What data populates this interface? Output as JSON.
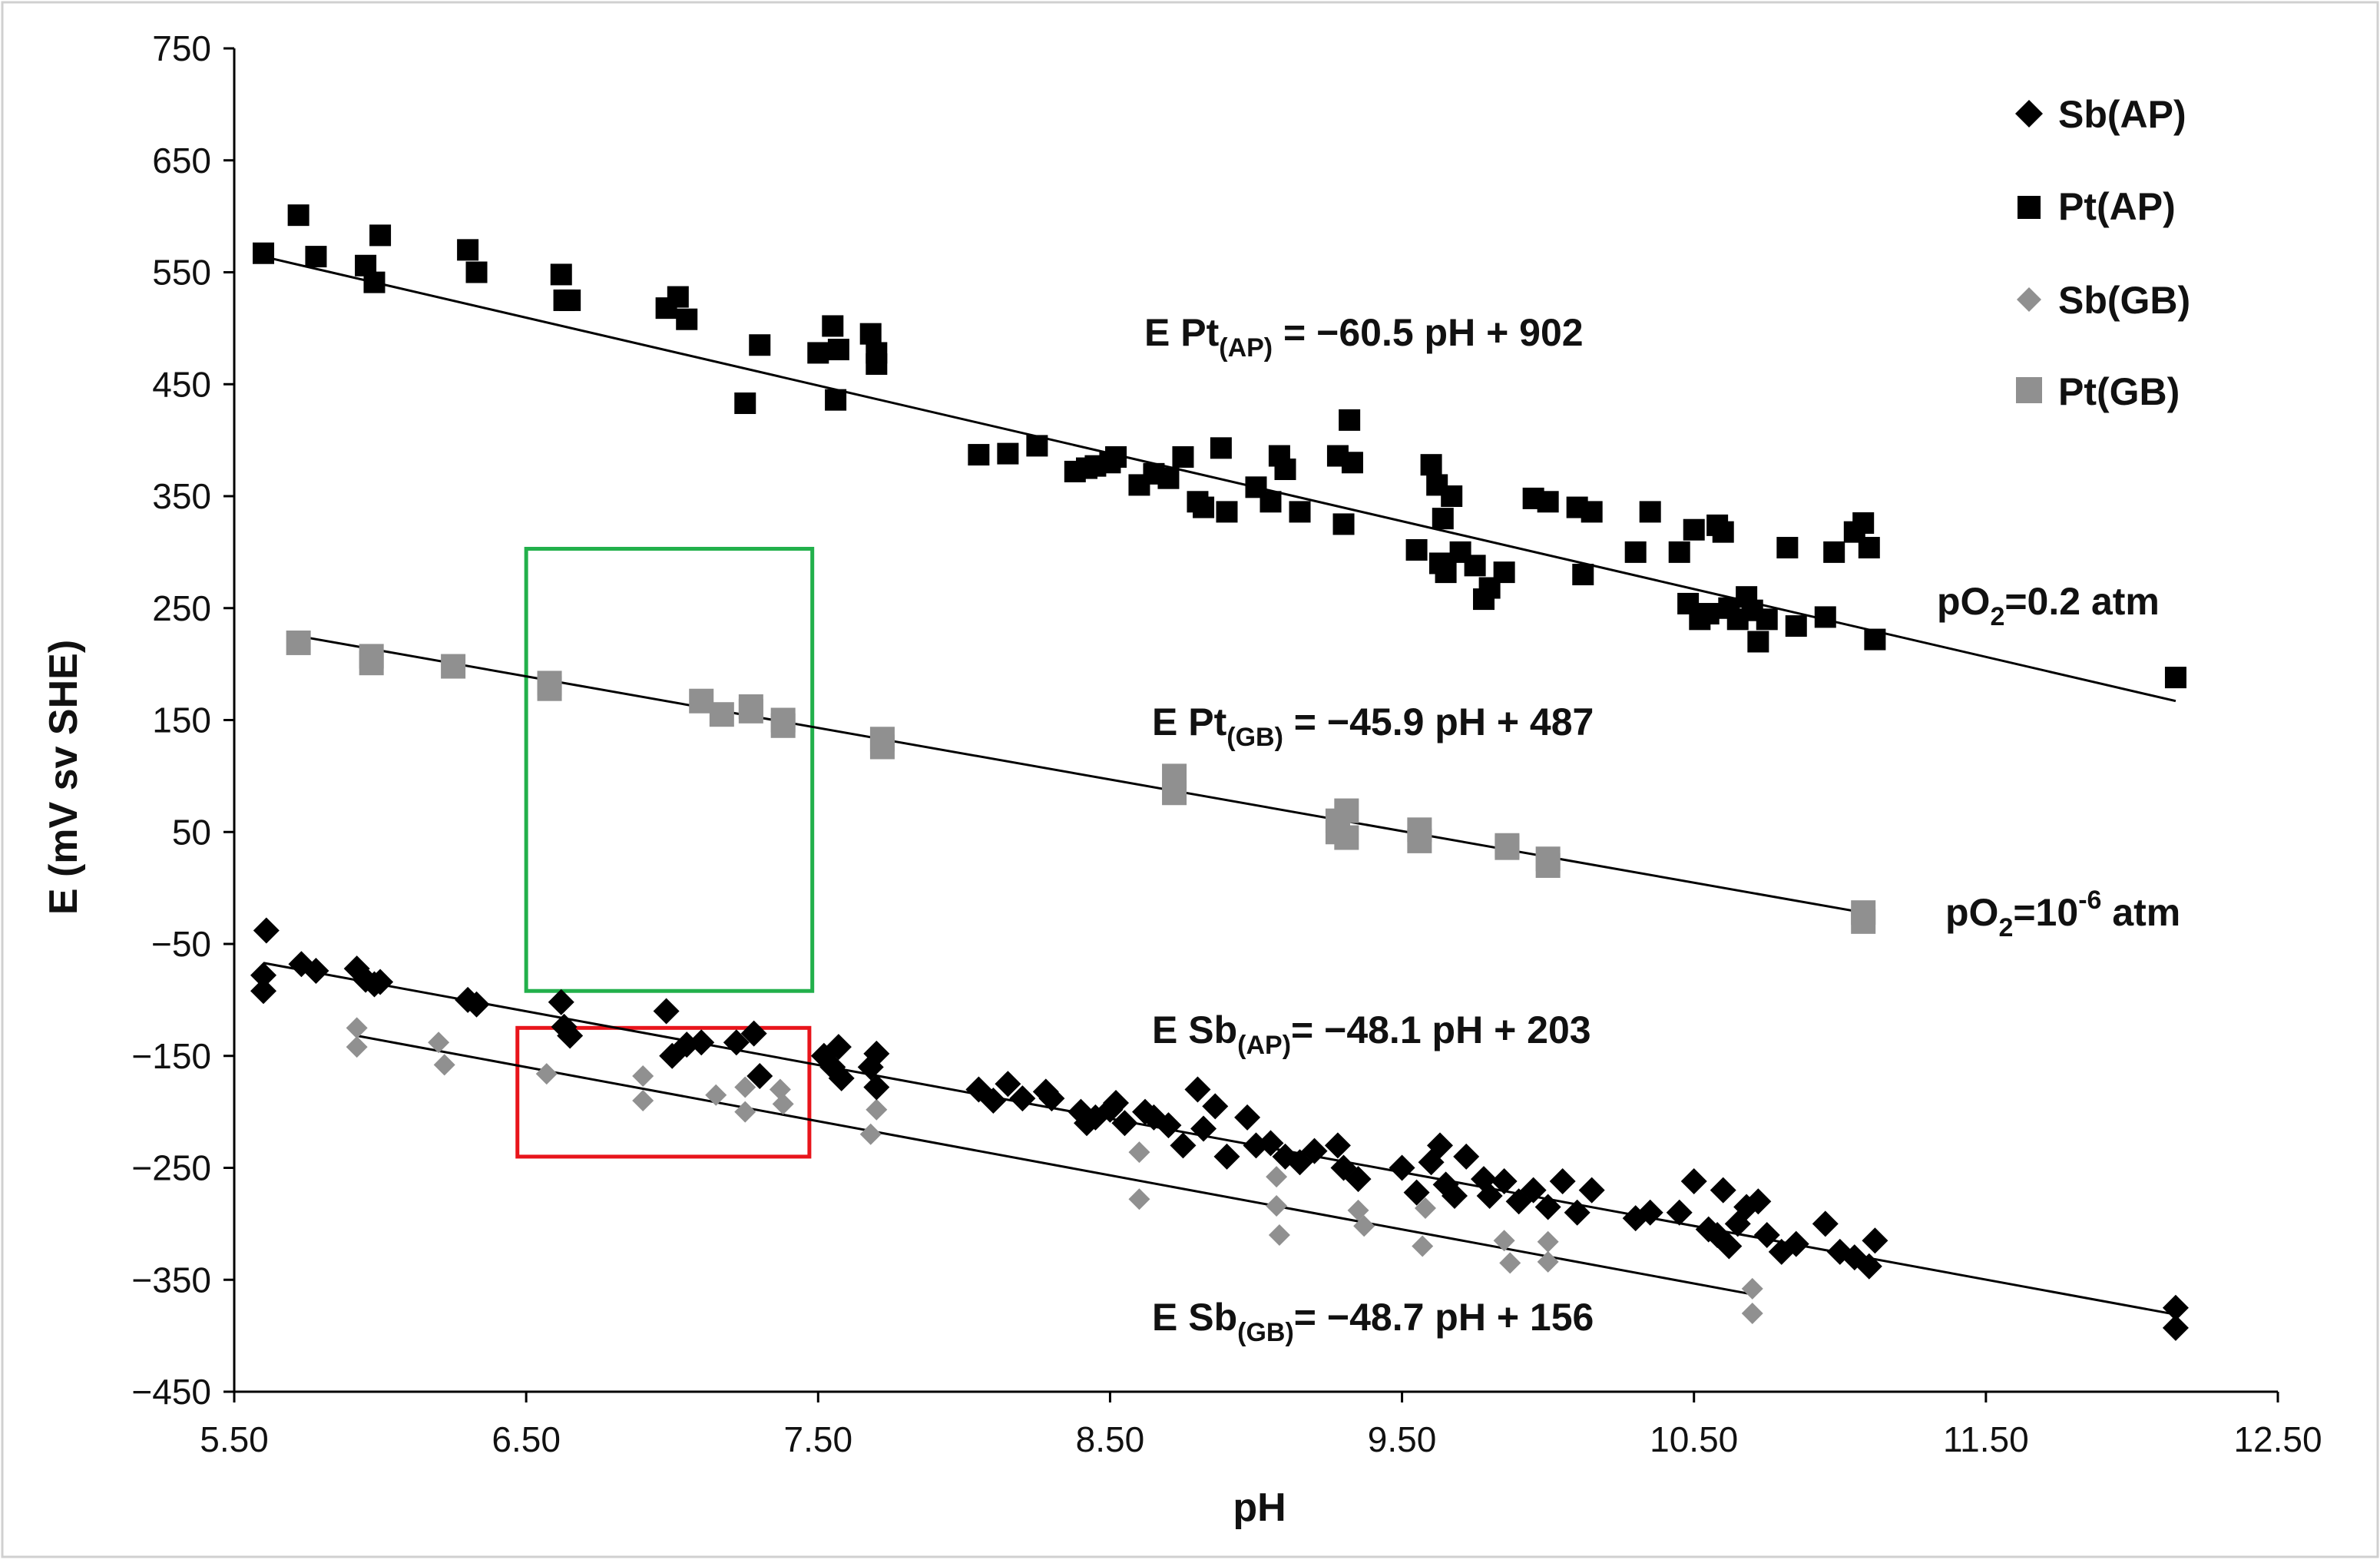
{
  "chart_data": {
    "type": "scatter",
    "title": "",
    "xlabel": "pH",
    "ylabel": "E (mV sv SHE)",
    "xlim": [
      5.5,
      12.5
    ],
    "ylim": [
      -450,
      750
    ],
    "x_ticks": [
      "5.50",
      "6.50",
      "7.50",
      "8.50",
      "9.50",
      "10.50",
      "11.50",
      "12.50"
    ],
    "y_ticks": [
      "750",
      "650",
      "550",
      "450",
      "350",
      "250",
      "150",
      "50",
      "−50",
      "−150",
      "−250",
      "−350",
      "−450"
    ],
    "grid": false,
    "legend_position": "top-right",
    "series": [
      {
        "name": "Sb(AP)",
        "marker": "diamond",
        "color": "#000000",
        "points": [
          [
            5.61,
            -38
          ],
          [
            5.6,
            -78
          ],
          [
            5.6,
            -92
          ],
          [
            5.73,
            -68
          ],
          [
            5.78,
            -74
          ],
          [
            5.92,
            -72
          ],
          [
            5.95,
            -82
          ],
          [
            5.98,
            -86
          ],
          [
            6.0,
            -84
          ],
          [
            6.3,
            -100
          ],
          [
            6.33,
            -104
          ],
          [
            6.62,
            -102
          ],
          [
            6.63,
            -124
          ],
          [
            6.65,
            -132
          ],
          [
            6.98,
            -110
          ],
          [
            7.0,
            -150
          ],
          [
            7.05,
            -140
          ],
          [
            7.1,
            -138
          ],
          [
            7.22,
            -138
          ],
          [
            7.28,
            -130
          ],
          [
            7.3,
            -168
          ],
          [
            7.52,
            -150
          ],
          [
            7.55,
            -160
          ],
          [
            7.57,
            -142
          ],
          [
            7.58,
            -170
          ],
          [
            7.68,
            -160
          ],
          [
            7.7,
            -178
          ],
          [
            7.7,
            -148
          ],
          [
            8.05,
            -180
          ],
          [
            8.1,
            -190
          ],
          [
            8.15,
            -175
          ],
          [
            8.2,
            -188
          ],
          [
            8.28,
            -182
          ],
          [
            8.3,
            -188
          ],
          [
            8.4,
            -200
          ],
          [
            8.42,
            -210
          ],
          [
            8.45,
            -205
          ],
          [
            8.5,
            -198
          ],
          [
            8.52,
            -192
          ],
          [
            8.55,
            -210
          ],
          [
            8.62,
            -200
          ],
          [
            8.65,
            -205
          ],
          [
            8.7,
            -212
          ],
          [
            8.75,
            -230
          ],
          [
            8.8,
            -180
          ],
          [
            8.82,
            -215
          ],
          [
            8.86,
            -195
          ],
          [
            8.9,
            -240
          ],
          [
            8.97,
            -205
          ],
          [
            9.0,
            -230
          ],
          [
            9.05,
            -228
          ],
          [
            9.1,
            -240
          ],
          [
            9.15,
            -245
          ],
          [
            9.2,
            -235
          ],
          [
            9.28,
            -230
          ],
          [
            9.3,
            -250
          ],
          [
            9.35,
            -260
          ],
          [
            9.5,
            -250
          ],
          [
            9.55,
            -272
          ],
          [
            9.6,
            -245
          ],
          [
            9.63,
            -230
          ],
          [
            9.65,
            -265
          ],
          [
            9.68,
            -275
          ],
          [
            9.72,
            -240
          ],
          [
            9.78,
            -260
          ],
          [
            9.8,
            -275
          ],
          [
            9.85,
            -262
          ],
          [
            9.9,
            -280
          ],
          [
            9.95,
            -270
          ],
          [
            10.0,
            -285
          ],
          [
            10.05,
            -262
          ],
          [
            10.1,
            -290
          ],
          [
            10.15,
            -270
          ],
          [
            10.3,
            -295
          ],
          [
            10.35,
            -290
          ],
          [
            10.45,
            -290
          ],
          [
            10.5,
            -262
          ],
          [
            10.55,
            -305
          ],
          [
            10.58,
            -310
          ],
          [
            10.6,
            -270
          ],
          [
            10.62,
            -320
          ],
          [
            10.65,
            -300
          ],
          [
            10.68,
            -285
          ],
          [
            10.72,
            -280
          ],
          [
            10.75,
            -310
          ],
          [
            10.8,
            -325
          ],
          [
            10.85,
            -318
          ],
          [
            10.95,
            -300
          ],
          [
            11.0,
            -325
          ],
          [
            11.05,
            -330
          ],
          [
            11.1,
            -338
          ],
          [
            11.12,
            -315
          ],
          [
            12.15,
            -375
          ],
          [
            12.15,
            -393
          ]
        ]
      },
      {
        "name": "Pt(AP)",
        "marker": "square",
        "color": "#000000",
        "points": [
          [
            5.6,
            567
          ],
          [
            5.72,
            601
          ],
          [
            5.78,
            564
          ],
          [
            5.95,
            556
          ],
          [
            5.98,
            541
          ],
          [
            6.0,
            583
          ],
          [
            6.3,
            570
          ],
          [
            6.33,
            550
          ],
          [
            6.62,
            548
          ],
          [
            6.63,
            525
          ],
          [
            6.65,
            525
          ],
          [
            6.98,
            518
          ],
          [
            7.02,
            528
          ],
          [
            7.05,
            508
          ],
          [
            7.25,
            433
          ],
          [
            7.3,
            485
          ],
          [
            7.5,
            478
          ],
          [
            7.55,
            502
          ],
          [
            7.56,
            436
          ],
          [
            7.57,
            481
          ],
          [
            7.68,
            495
          ],
          [
            7.7,
            478
          ],
          [
            7.7,
            468
          ],
          [
            8.05,
            387
          ],
          [
            8.15,
            388
          ],
          [
            8.25,
            395
          ],
          [
            8.38,
            372
          ],
          [
            8.42,
            375
          ],
          [
            8.45,
            377
          ],
          [
            8.5,
            380
          ],
          [
            8.52,
            385
          ],
          [
            8.6,
            360
          ],
          [
            8.65,
            370
          ],
          [
            8.7,
            366
          ],
          [
            8.75,
            385
          ],
          [
            8.8,
            345
          ],
          [
            8.82,
            340
          ],
          [
            8.88,
            393
          ],
          [
            8.9,
            336
          ],
          [
            9.0,
            358
          ],
          [
            9.05,
            345
          ],
          [
            9.08,
            386
          ],
          [
            9.1,
            374
          ],
          [
            9.15,
            336
          ],
          [
            9.28,
            386
          ],
          [
            9.3,
            325
          ],
          [
            9.32,
            418
          ],
          [
            9.33,
            380
          ],
          [
            9.55,
            302
          ],
          [
            9.6,
            378
          ],
          [
            9.62,
            360
          ],
          [
            9.63,
            290
          ],
          [
            9.64,
            330
          ],
          [
            9.65,
            282
          ],
          [
            9.67,
            350
          ],
          [
            9.7,
            300
          ],
          [
            9.75,
            288
          ],
          [
            9.78,
            258
          ],
          [
            9.8,
            268
          ],
          [
            9.85,
            282
          ],
          [
            9.95,
            348
          ],
          [
            10.0,
            345
          ],
          [
            10.1,
            340
          ],
          [
            10.12,
            280
          ],
          [
            10.15,
            336
          ],
          [
            10.3,
            300
          ],
          [
            10.35,
            336
          ],
          [
            10.45,
            300
          ],
          [
            10.48,
            254
          ],
          [
            10.5,
            320
          ],
          [
            10.52,
            240
          ],
          [
            10.55,
            245
          ],
          [
            10.58,
            324
          ],
          [
            10.6,
            318
          ],
          [
            10.62,
            250
          ],
          [
            10.65,
            240
          ],
          [
            10.68,
            260
          ],
          [
            10.7,
            248
          ],
          [
            10.72,
            220
          ],
          [
            10.75,
            240
          ],
          [
            10.82,
            304
          ],
          [
            10.85,
            234
          ],
          [
            10.95,
            242
          ],
          [
            10.98,
            300
          ],
          [
            11.05,
            318
          ],
          [
            11.08,
            326
          ],
          [
            11.1,
            304
          ],
          [
            11.12,
            222
          ],
          [
            12.15,
            188
          ]
        ]
      },
      {
        "name": "Sb(GB)",
        "marker": "diamond",
        "color": "#909090",
        "points": [
          [
            5.92,
            -125
          ],
          [
            5.92,
            -142
          ],
          [
            6.2,
            -138
          ],
          [
            6.22,
            -158
          ],
          [
            6.57,
            -166
          ],
          [
            6.9,
            -168
          ],
          [
            6.9,
            -190
          ],
          [
            7.15,
            -185
          ],
          [
            7.25,
            -178
          ],
          [
            7.25,
            -200
          ],
          [
            7.37,
            -180
          ],
          [
            7.38,
            -193
          ],
          [
            7.68,
            -220
          ],
          [
            7.7,
            -198
          ],
          [
            8.6,
            -236
          ],
          [
            8.6,
            -278
          ],
          [
            9.07,
            -258
          ],
          [
            9.07,
            -284
          ],
          [
            9.08,
            -310
          ],
          [
            9.35,
            -288
          ],
          [
            9.37,
            -302
          ],
          [
            9.57,
            -320
          ],
          [
            9.58,
            -286
          ],
          [
            9.85,
            -315
          ],
          [
            9.87,
            -335
          ],
          [
            10.0,
            -316
          ],
          [
            10.0,
            -334
          ],
          [
            10.7,
            -358
          ],
          [
            10.7,
            -380
          ]
        ]
      },
      {
        "name": "Pt(GB)",
        "marker": "square",
        "color": "#909090",
        "points": [
          [
            5.72,
            219
          ],
          [
            5.97,
            207
          ],
          [
            5.97,
            201
          ],
          [
            6.25,
            198
          ],
          [
            6.58,
            183
          ],
          [
            6.58,
            178
          ],
          [
            7.1,
            167
          ],
          [
            7.17,
            155
          ],
          [
            7.27,
            158
          ],
          [
            7.27,
            162
          ],
          [
            7.38,
            145
          ],
          [
            7.38,
            150
          ],
          [
            7.72,
            126
          ],
          [
            7.72,
            133
          ],
          [
            8.72,
            100
          ],
          [
            8.72,
            85
          ],
          [
            9.28,
            50
          ],
          [
            9.28,
            60
          ],
          [
            9.31,
            69
          ],
          [
            9.31,
            45
          ],
          [
            9.56,
            52
          ],
          [
            9.56,
            42
          ],
          [
            9.86,
            38
          ],
          [
            9.86,
            36
          ],
          [
            10.0,
            26
          ],
          [
            10.0,
            20
          ],
          [
            11.08,
            -22
          ],
          [
            11.08,
            -30
          ]
        ]
      }
    ],
    "trendlines": [
      {
        "series": "Pt(AP)",
        "x_range": [
          5.6,
          12.15
        ],
        "y_range": [
          564,
          167
        ]
      },
      {
        "series": "Pt(GB)",
        "x_range": [
          5.72,
          11.08
        ],
        "y_range": [
          225,
          -22
        ]
      },
      {
        "series": "Sb(AP)",
        "x_range": [
          5.6,
          12.15
        ],
        "y_range": [
          -67,
          -381
        ]
      },
      {
        "series": "Sb(GB)",
        "x_range": [
          5.92,
          10.7
        ],
        "y_range": [
          -132,
          -363
        ]
      }
    ],
    "equations": [
      {
        "prefix": "E Pt",
        "sub": "(AP)",
        "suffix": " = −60.5 pH + 902"
      },
      {
        "prefix": "E Pt",
        "sub": "(GB)",
        "suffix": " = −45.9 pH + 487"
      },
      {
        "prefix": "E Sb",
        "sub": "(AP)",
        "suffix": "= −48.1 pH + 203"
      },
      {
        "prefix": "E Sb",
        "sub": "(GB)",
        "suffix": "= −48.7 pH + 156"
      }
    ],
    "annotations": [
      {
        "prefix": "pO",
        "sub": "2",
        "suffix": "=0.2 atm",
        "sup": ""
      },
      {
        "prefix": "pO",
        "sub": "2",
        "suffix": "=10",
        "sup": "-6",
        "tail": " atm"
      }
    ],
    "highlight_boxes": [
      {
        "name": "green-box",
        "color": "#22b04b",
        "x_range": [
          6.5,
          7.48
        ],
        "y_range": [
          -92,
          303
        ]
      },
      {
        "name": "red-box",
        "color": "#e8141b",
        "x_range": [
          6.47,
          7.47
        ],
        "y_range": [
          -240,
          -125
        ]
      }
    ]
  }
}
